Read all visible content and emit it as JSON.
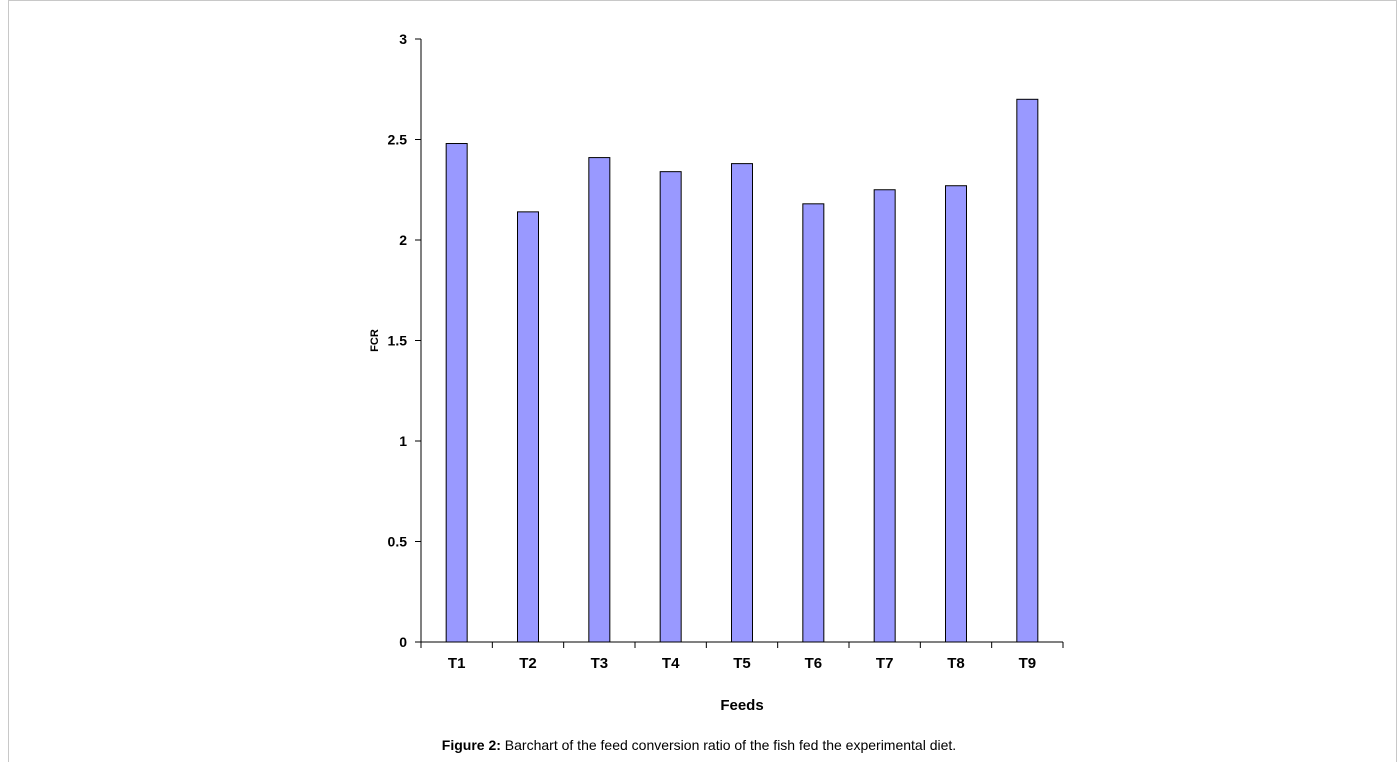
{
  "figure": {
    "caption_label": "Figure 2:",
    "caption_text": " Barchart of the feed conversion ratio of the fish fed the experimental diet."
  },
  "chart_data": {
    "type": "bar",
    "categories": [
      "T1",
      "T2",
      "T3",
      "T4",
      "T5",
      "T6",
      "T7",
      "T8",
      "T9"
    ],
    "values": [
      2.48,
      2.14,
      2.41,
      2.34,
      2.38,
      2.18,
      2.25,
      2.27,
      2.7
    ],
    "title": "",
    "xlabel": "Feeds",
    "ylabel": "FCR",
    "ylim": [
      0,
      3
    ],
    "yticks": [
      "0",
      "0.5",
      "1",
      "1.5",
      "2",
      "2.5",
      "3"
    ],
    "grid": false,
    "legend": "none",
    "bar_color": "#9999ff",
    "bar_stroke": "#000000"
  }
}
